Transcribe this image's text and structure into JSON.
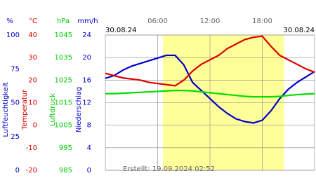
{
  "chart_data": {
    "type": "line",
    "date_left": "30.08.24",
    "date_right": "30.08.24",
    "created": "Erstellt: 19.09.2024 02:52",
    "xlim": [
      0,
      24
    ],
    "xticks": [
      {
        "value": 6,
        "label": "06:00"
      },
      {
        "value": 12,
        "label": "12:00"
      },
      {
        "value": 18,
        "label": "18:00"
      }
    ],
    "daylight_span": [
      6.6,
      20.5
    ],
    "grid": true,
    "axes": [
      {
        "unit": "%",
        "title": "Luftfeuchtigkeit",
        "color": "#0000cc",
        "ylim": [
          0,
          100
        ],
        "yticks": [
          0,
          25,
          50,
          75,
          100
        ]
      },
      {
        "unit": "°C",
        "title": "Temperatur",
        "color": "#dd0000",
        "ylim": [
          -20,
          40
        ],
        "yticks": [
          -20,
          -10,
          0,
          10,
          20,
          30,
          40
        ]
      },
      {
        "unit": "hPa",
        "title": "Luftdruck",
        "color": "#00cc00",
        "ylim": [
          985,
          1045
        ],
        "yticks": [
          985,
          995,
          1005,
          1015,
          1025,
          1035,
          1045
        ]
      },
      {
        "unit": "mm/h",
        "title": "Niederschlag",
        "color": "#0000cc",
        "ylim": [
          0,
          24
        ],
        "yticks": [
          0,
          4,
          8,
          12,
          16,
          20,
          24
        ]
      }
    ],
    "x": [
      0,
      1,
      2,
      3,
      4,
      5,
      6,
      7,
      8,
      9,
      10,
      11,
      12,
      13,
      14,
      15,
      16,
      17,
      18,
      19,
      20,
      21,
      22,
      23,
      24
    ],
    "series": [
      {
        "name": "Luftfeuchtigkeit",
        "axis": 0,
        "color": "#0000cc",
        "values": [
          68,
          70,
          74,
          77,
          79,
          81,
          83,
          85,
          85,
          78,
          65,
          59,
          53,
          47,
          42,
          38,
          36,
          35,
          37,
          44,
          53,
          60,
          65,
          69,
          73
        ]
      },
      {
        "name": "Temperatur",
        "axis": 1,
        "color": "#dd0000",
        "values": [
          23,
          22,
          21,
          20.5,
          20,
          19,
          18.5,
          18,
          17.5,
          20,
          24,
          27,
          29,
          31,
          34,
          36,
          38,
          39,
          39.5,
          35,
          31,
          29,
          27,
          25,
          23.5
        ]
      },
      {
        "name": "Luftdruck",
        "axis": 2,
        "color": "#00dd00",
        "values": [
          1019,
          1019,
          1019.2,
          1019.4,
          1019.6,
          1019.8,
          1020,
          1020.2,
          1020.4,
          1020.4,
          1020.2,
          1019.8,
          1019.4,
          1019,
          1018.6,
          1018.2,
          1017.8,
          1017.6,
          1017.6,
          1017.6,
          1017.8,
          1018.2,
          1018.6,
          1018.8,
          1019
        ]
      }
    ]
  }
}
